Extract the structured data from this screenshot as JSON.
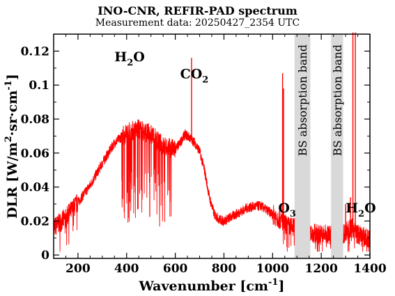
{
  "chart_data": {
    "type": "line",
    "title": "INO-CNR, REFIR-PAD spectrum",
    "subtitle": "Measurement data: 20250427_2354 UTC",
    "xlabel": {
      "main": "Wavenumber [cm",
      "sup": "-1",
      "end": "]"
    },
    "ylabel": {
      "p1": "DLR [W/m",
      "sup1": "2",
      "p2": "·sr·cm",
      "sup2": "-1",
      "p3": "]"
    },
    "xlim": [
      100,
      1400
    ],
    "ylim": [
      -0.002,
      0.13
    ],
    "x_ticks": [
      "200",
      "400",
      "600",
      "800",
      "1000",
      "1200",
      "1400"
    ],
    "x_tick_values": [
      200,
      400,
      600,
      800,
      1000,
      1200,
      1400
    ],
    "y_ticks": [
      "0",
      "0.02",
      "0.04",
      "0.06",
      "0.08",
      "0.1",
      "0.12"
    ],
    "y_tick_values": [
      0,
      0.02,
      0.04,
      0.06,
      0.08,
      0.1,
      0.12
    ],
    "grid": false,
    "line_color": "#ff0000",
    "band_color": "#d9d9d9",
    "bands": [
      {
        "range": [
          1090,
          1155
        ],
        "label": "BS absorption band"
      },
      {
        "range": [
          1240,
          1290
        ],
        "label": "BS absorption band"
      }
    ],
    "annotations": [
      {
        "base": "H",
        "sub": "2",
        "tail": "O",
        "x": 350,
        "y": 0.114
      },
      {
        "base": "CO",
        "sub": "2",
        "tail": "",
        "x": 620,
        "y": 0.104
      },
      {
        "base": "O",
        "sub": "3",
        "tail": "",
        "x": 1023,
        "y": 0.025
      },
      {
        "base": "H",
        "sub": "2",
        "tail": "O",
        "x": 1300,
        "y": 0.025
      }
    ],
    "envelope": {
      "x": [
        100,
        150,
        200,
        250,
        300,
        350,
        400,
        450,
        500,
        550,
        600,
        620,
        640,
        660,
        680,
        700,
        720,
        740,
        760,
        780,
        800,
        850,
        900,
        950,
        1000,
        1020,
        1040,
        1060,
        1090,
        1160,
        1200,
        1240,
        1290,
        1300,
        1330,
        1350,
        1400
      ],
      "y": [
        0.016,
        0.022,
        0.031,
        0.041,
        0.054,
        0.066,
        0.072,
        0.074,
        0.071,
        0.064,
        0.062,
        0.066,
        0.071,
        0.069,
        0.066,
        0.061,
        0.05,
        0.034,
        0.024,
        0.021,
        0.02,
        0.024,
        0.028,
        0.029,
        0.024,
        0.022,
        0.02,
        0.017,
        0.016,
        0.013,
        0.012,
        0.012,
        0.012,
        0.014,
        0.016,
        0.012,
        0.009
      ]
    },
    "peaks": [
      {
        "x": 667,
        "y": 0.116
      },
      {
        "x": 1041,
        "y": 0.107
      },
      {
        "x": 1045,
        "y": 0.098
      },
      {
        "x": 1330,
        "y": 0.132
      },
      {
        "x": 1340,
        "y": 0.132
      },
      {
        "x": 1300,
        "y": 0.03
      },
      {
        "x": 1320,
        "y": 0.034
      }
    ],
    "noise": {
      "low_min": 0.003,
      "low_max": 0.085,
      "low_region": [
        380,
        600
      ]
    }
  }
}
